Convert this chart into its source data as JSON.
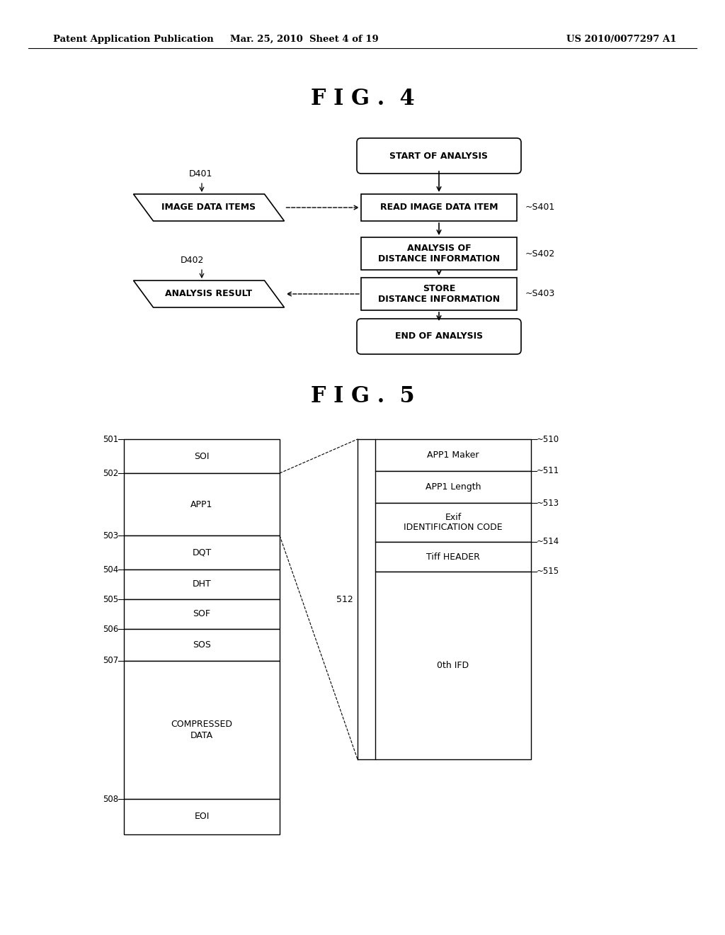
{
  "bg_color": "#ffffff",
  "header_left": "Patent Application Publication",
  "header_mid": "Mar. 25, 2010  Sheet 4 of 19",
  "header_right": "US 2010/0077297 A1",
  "fig4_title": "F I G .  4",
  "fig5_title": "F I G .  5"
}
